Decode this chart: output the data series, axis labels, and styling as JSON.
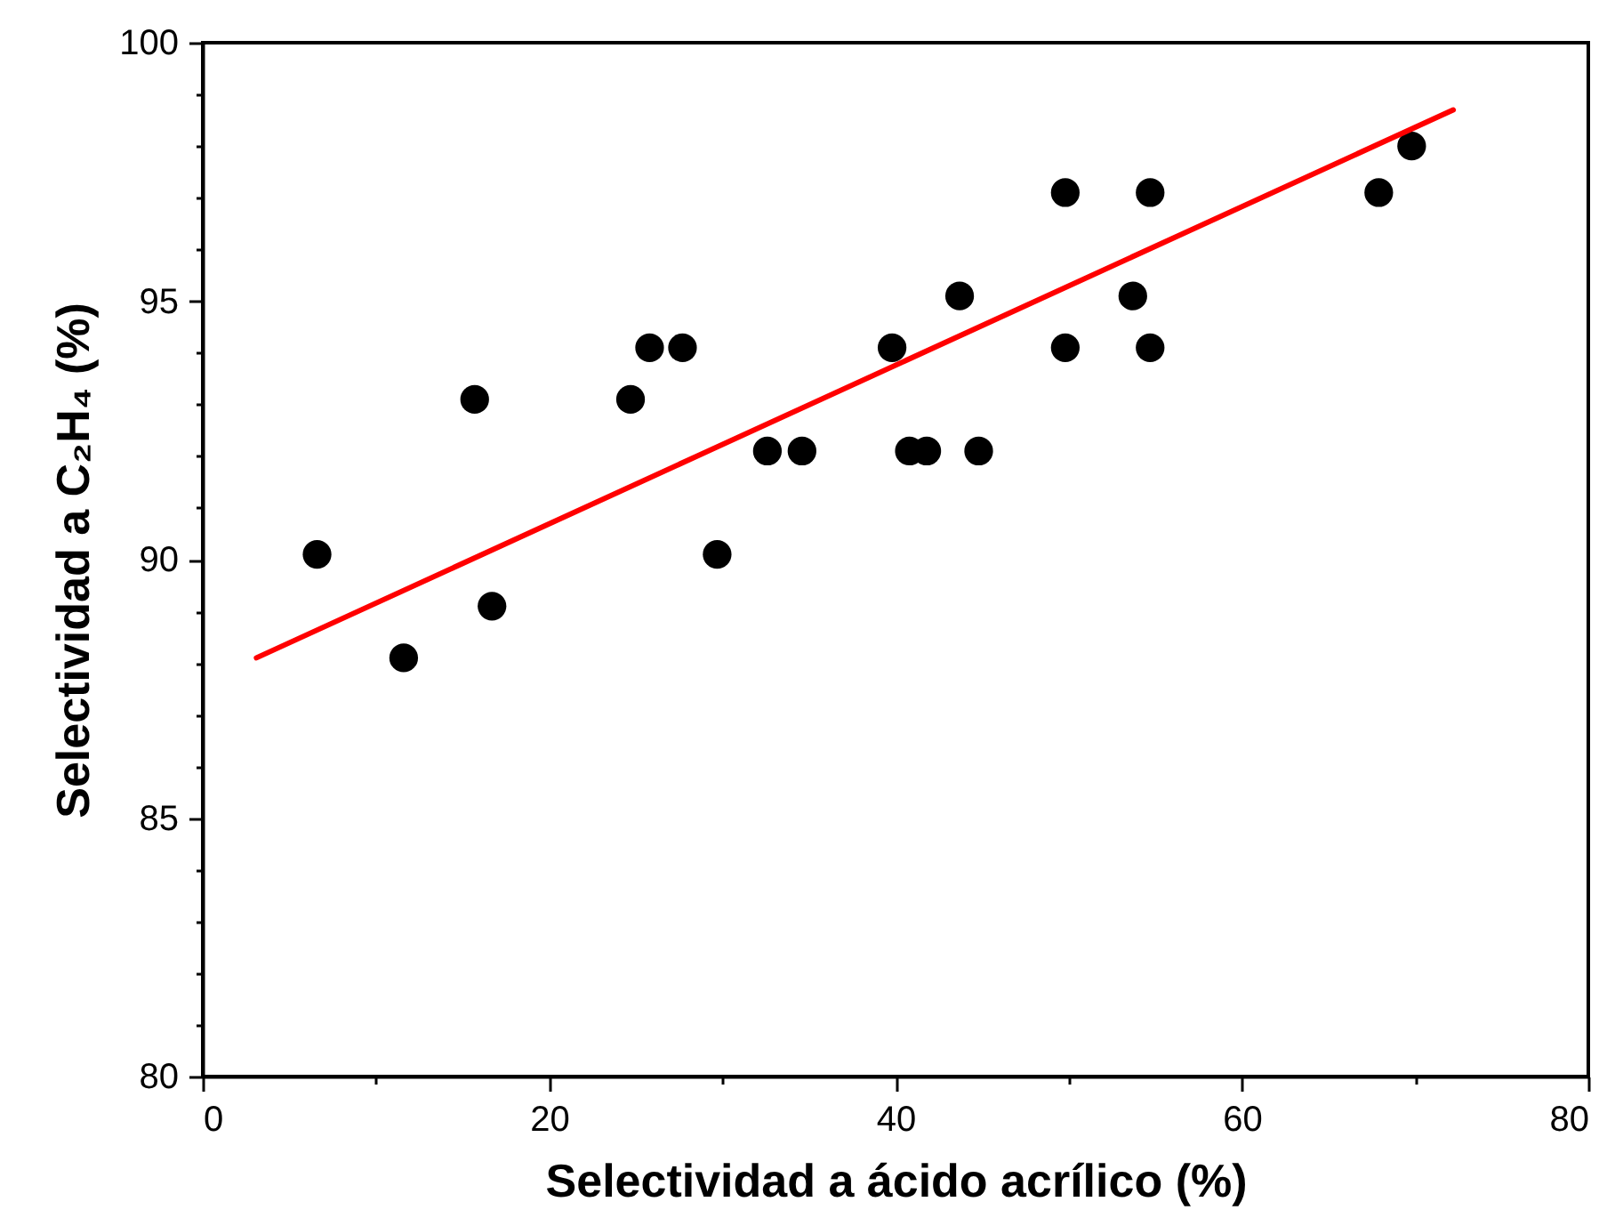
{
  "chart_data": {
    "type": "scatter",
    "xlabel": "Selectividad a ácido acrílico (%)",
    "ylabel": "Selectividad a C₂H₄ (%)",
    "xlim": [
      0,
      80
    ],
    "ylim": [
      80,
      100
    ],
    "xticks": [
      0,
      {
        "value": 10,
        "label": null
      },
      20,
      {
        "value": 30,
        "label": null
      },
      40,
      {
        "value": 50,
        "label": null
      },
      60,
      {
        "value": 70,
        "label": null
      },
      80
    ],
    "yticks": [
      80,
      {
        "value": 81,
        "label": null
      },
      {
        "value": 82,
        "label": null
      },
      {
        "value": 83,
        "label": null
      },
      {
        "value": 84,
        "label": null
      },
      85,
      {
        "value": 86,
        "label": null
      },
      {
        "value": 87,
        "label": null
      },
      {
        "value": 88,
        "label": null
      },
      {
        "value": 89,
        "label": null
      },
      90,
      {
        "value": 91,
        "label": null
      },
      {
        "value": 92,
        "label": null
      },
      {
        "value": 93,
        "label": null
      },
      {
        "value": 94,
        "label": null
      },
      95,
      {
        "value": 96,
        "label": null
      },
      {
        "value": 97,
        "label": null
      },
      {
        "value": 98,
        "label": null
      },
      {
        "value": 99,
        "label": null
      },
      100
    ],
    "grid": false,
    "series": [
      {
        "type": "scatter",
        "marker": "circle",
        "color": "#000000",
        "x": [
          6.6,
          11.6,
          15.7,
          16.7,
          24.7,
          25.8,
          27.7,
          29.7,
          32.6,
          34.6,
          39.8,
          40.8,
          41.8,
          43.7,
          44.8,
          49.8,
          49.8,
          53.7,
          54.7,
          54.7,
          67.9,
          69.8
        ],
        "values": [
          90.1,
          88.1,
          93.1,
          89.1,
          93.1,
          94.1,
          94.1,
          90.1,
          92.1,
          92.1,
          94.1,
          92.1,
          92.1,
          95.1,
          92.1,
          97.1,
          94.1,
          95.1,
          97.1,
          94.1,
          97.1,
          98.0
        ]
      },
      {
        "type": "line",
        "color": "#ff0000",
        "line_style": "solid",
        "x": [
          3.1,
          72.2
        ],
        "values": [
          88.1,
          98.7
        ]
      }
    ]
  }
}
